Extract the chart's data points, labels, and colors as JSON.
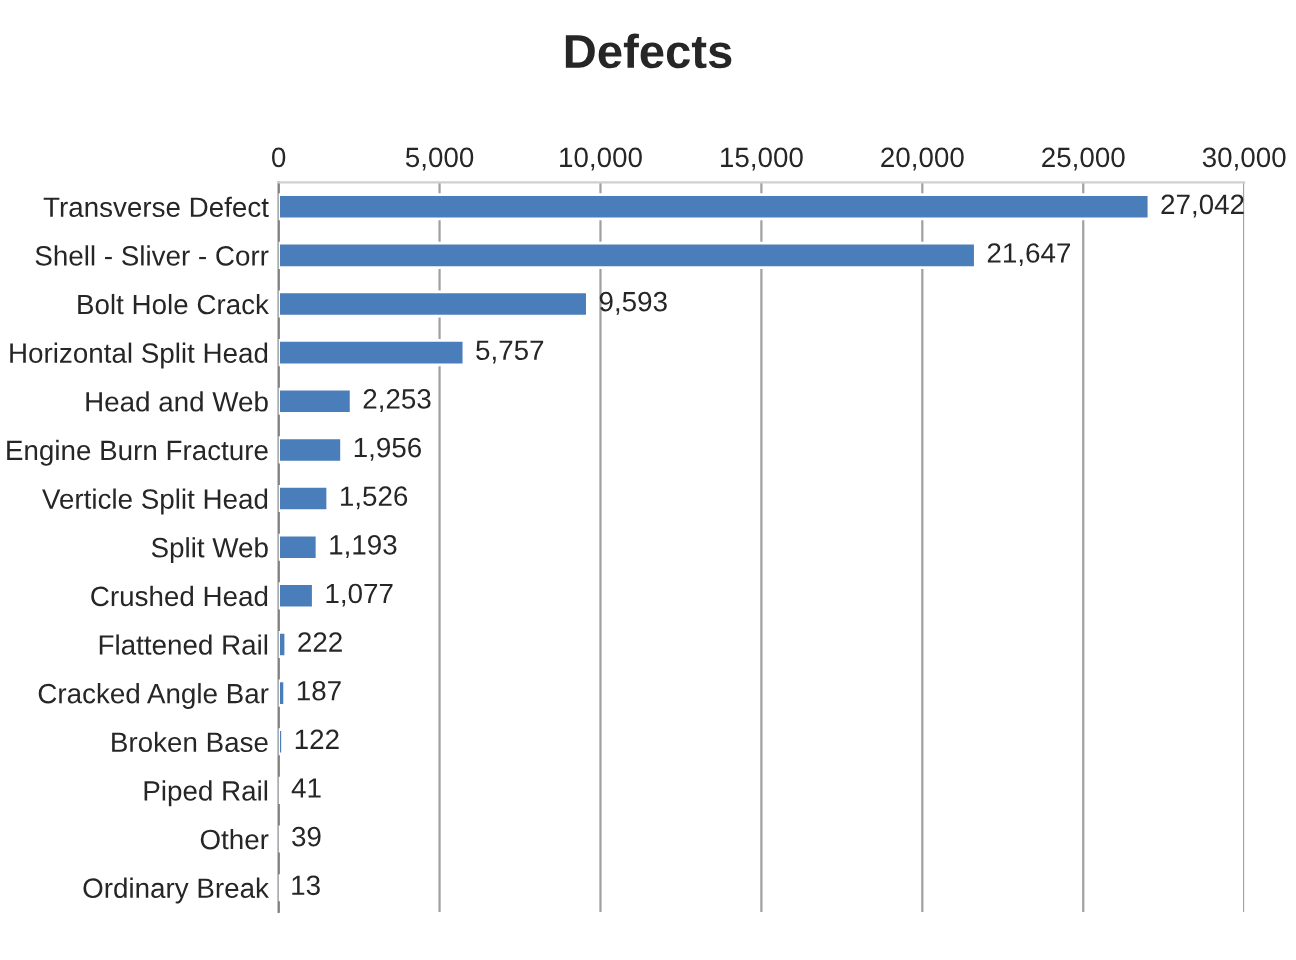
{
  "chart_data": {
    "type": "bar",
    "orientation": "horizontal",
    "title": "Defects",
    "categories": [
      "Transverse Defect",
      "Shell - Sliver - Corr",
      "Bolt Hole Crack",
      "Horizontal Split Head",
      "Head and Web",
      "Engine Burn Fracture",
      "Verticle Split Head",
      "Split Web",
      "Crushed Head",
      "Flattened Rail",
      "Cracked Angle Bar",
      "Broken Base",
      "Piped Rail",
      "Other",
      "Ordinary Break"
    ],
    "values": [
      27042,
      21647,
      9593,
      5757,
      2253,
      1956,
      1526,
      1193,
      1077,
      222,
      187,
      122,
      41,
      39,
      13
    ],
    "value_labels": [
      "27,042",
      "21,647",
      "9,593",
      "5,757",
      "2,253",
      "1,956",
      "1,526",
      "1,193",
      "1,077",
      "222",
      "187",
      "122",
      "41",
      "39",
      "13"
    ],
    "color": "#4a7ebb",
    "xlim": [
      0,
      30000
    ],
    "xticks": [
      0,
      {
        "value": 5000,
        "label": "5,000"
      },
      {
        "value": 10000,
        "label": "10,000"
      },
      {
        "value": 15000,
        "label": "15,000"
      },
      {
        "value": 20000,
        "label": "20,000"
      },
      {
        "value": 25000,
        "label": "25,000"
      },
      {
        "value": 30000,
        "label": "30,000"
      }
    ],
    "grid": "x",
    "legend": false
  }
}
